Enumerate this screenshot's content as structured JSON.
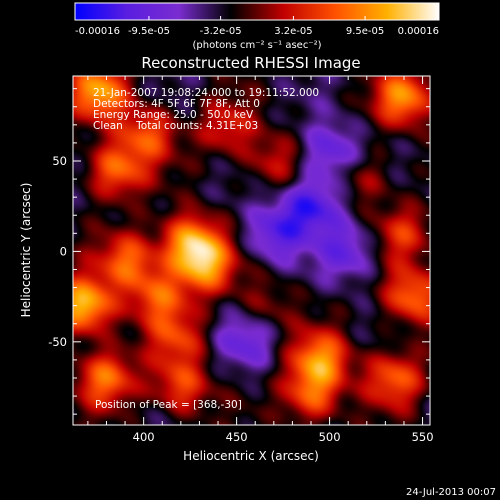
{
  "chart_data": {
    "type": "heatmap",
    "title": "Reconstructed RHESSI Image",
    "xlabel": "Heliocentric X (arcsec)",
    "ylabel": "Heliocentric Y (arcsec)",
    "xlim": [
      362,
      554
    ],
    "ylim": [
      -96,
      97
    ],
    "x_ticks": [
      400,
      450,
      500,
      550
    ],
    "x_tick_labels": [
      "400",
      "450",
      "500",
      "550"
    ],
    "y_ticks": [
      -50,
      0,
      50
    ],
    "y_tick_labels": [
      "-50",
      "0",
      "50"
    ],
    "colorbar": {
      "min": -0.00016,
      "max": 0.00016,
      "ticks": [
        -0.00016,
        -9.5e-05,
        -3.2e-05,
        3.2e-05,
        9.5e-05,
        0.00016
      ],
      "tick_labels": [
        "-0.00016",
        "-9.5e-05",
        "-3.2e-05",
        "3.2e-05",
        "9.5e-05",
        "0.00016"
      ],
      "unit_label": "(photons cm⁻² s⁻¹ asec⁻²)",
      "colors": [
        "#0000ff",
        "#5a1ee0",
        "#7a2cd0",
        "#000000",
        "#c00000",
        "#ff5000",
        "#ffb000",
        "#ffffff"
      ]
    },
    "annotations": [
      "21-Jan-2007 19:08:24.000 to 19:11:52.000",
      "Detectors: 4F 5F 6F 7F 8F, Att 0",
      "Energy Range: 25.0 - 50.0 keV",
      "Clean    Total counts: 4.31E+03",
      "Position of Peak = [368,-30]"
    ],
    "peak": {
      "x": 368,
      "y": -30
    },
    "sources": [
      {
        "x": 368,
        "y": -30,
        "value": 0.00016
      },
      {
        "x": 376,
        "y": 88,
        "value": 0.00013
      },
      {
        "x": 385,
        "y": 45,
        "value": 0.00011
      },
      {
        "x": 402,
        "y": 65,
        "value": 9e-05
      },
      {
        "x": 392,
        "y": -5,
        "value": 0.0001
      },
      {
        "x": 425,
        "y": 5,
        "value": 0.00013
      },
      {
        "x": 433,
        "y": -8,
        "value": 0.00012
      },
      {
        "x": 408,
        "y": -25,
        "value": 9e-05
      },
      {
        "x": 380,
        "y": -70,
        "value": 0.00011
      },
      {
        "x": 420,
        "y": -75,
        "value": 9e-05
      },
      {
        "x": 418,
        "y": -48,
        "value": 7e-05
      },
      {
        "x": 445,
        "y": 68,
        "value": 7e-05
      },
      {
        "x": 470,
        "y": 50,
        "value": 6e-05
      },
      {
        "x": 495,
        "y": -60,
        "value": 0.00012
      },
      {
        "x": 490,
        "y": -80,
        "value": 0.0001
      },
      {
        "x": 540,
        "y": 85,
        "value": 0.00012
      },
      {
        "x": 545,
        "y": -25,
        "value": 0.00011
      },
      {
        "x": 535,
        "y": -70,
        "value": 0.0001
      },
      {
        "x": 540,
        "y": 10,
        "value": 7e-05
      },
      {
        "x": 520,
        "y": 40,
        "value": 5e-05
      },
      {
        "x": 465,
        "y": -30,
        "value": 4e-05
      },
      {
        "x": 470,
        "y": 10,
        "value": -8e-05
      },
      {
        "x": 490,
        "y": 25,
        "value": -0.0001
      },
      {
        "x": 500,
        "y": 55,
        "value": -8e-05
      },
      {
        "x": 510,
        "y": 0,
        "value": -7e-05
      },
      {
        "x": 455,
        "y": -50,
        "value": -6e-05
      }
    ]
  },
  "footer": {
    "date": "24-Jul-2013 00:07"
  }
}
